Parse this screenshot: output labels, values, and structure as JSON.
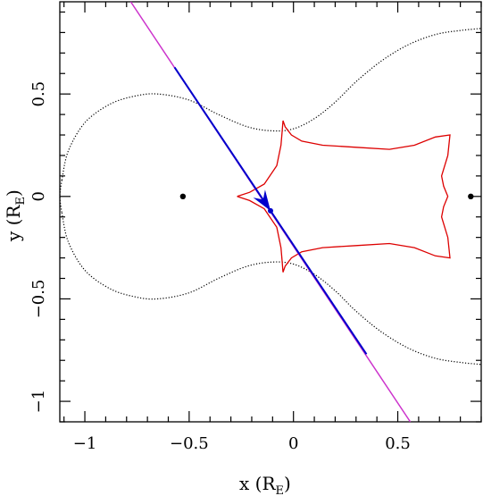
{
  "chart_data": {
    "type": "line",
    "title": "",
    "xlabel": {
      "main": "x (R",
      "sub": "E",
      "close": ")"
    },
    "ylabel": {
      "main": "y (R",
      "sub": "E",
      "close": ")"
    },
    "xlim": [
      -1.12,
      0.9
    ],
    "ylim": [
      -1.1,
      0.95
    ],
    "x_ticks": [
      -1,
      -0.5,
      0,
      0.5
    ],
    "x_tick_labels": [
      "−1",
      "−0.5",
      "0",
      "0.5"
    ],
    "y_ticks": [
      -1,
      -0.5,
      0,
      0.5
    ],
    "y_tick_labels": [
      "−1",
      "−0.5",
      "0",
      "0.5"
    ],
    "grid": false,
    "lenses": [
      {
        "x": -0.53,
        "y": 0.0
      },
      {
        "x": 0.85,
        "y": 0.0
      }
    ],
    "critical_curve": {
      "color": "#000000",
      "style": "dotted",
      "upper": [
        [
          -1.11,
          0.08
        ],
        [
          -1.08,
          0.22
        ],
        [
          -1.0,
          0.36
        ],
        [
          -0.88,
          0.45
        ],
        [
          -0.76,
          0.49
        ],
        [
          -0.65,
          0.5
        ],
        [
          -0.5,
          0.47
        ],
        [
          -0.36,
          0.4
        ],
        [
          -0.22,
          0.34
        ],
        [
          -0.1,
          0.32
        ],
        [
          0.0,
          0.33
        ],
        [
          0.1,
          0.38
        ],
        [
          0.2,
          0.46
        ],
        [
          0.3,
          0.56
        ],
        [
          0.42,
          0.66
        ],
        [
          0.55,
          0.74
        ],
        [
          0.68,
          0.79
        ],
        [
          0.8,
          0.81
        ],
        [
          0.9,
          0.82
        ]
      ]
    },
    "caustic": {
      "color": "#dd0000",
      "points": [
        [
          -0.27,
          0.0
        ],
        [
          -0.21,
          0.02
        ],
        [
          -0.14,
          0.06
        ],
        [
          -0.08,
          0.15
        ],
        [
          -0.06,
          0.25
        ],
        [
          -0.055,
          0.31
        ],
        [
          -0.05,
          0.37
        ],
        [
          -0.04,
          0.34
        ],
        [
          -0.01,
          0.3
        ],
        [
          0.04,
          0.27
        ],
        [
          0.14,
          0.25
        ],
        [
          0.3,
          0.24
        ],
        [
          0.46,
          0.23
        ],
        [
          0.58,
          0.25
        ],
        [
          0.68,
          0.29
        ],
        [
          0.75,
          0.3
        ],
        [
          0.74,
          0.2
        ],
        [
          0.71,
          0.1
        ],
        [
          0.72,
          0.05
        ],
        [
          0.74,
          0.0
        ],
        [
          0.72,
          -0.05
        ],
        [
          0.71,
          -0.1
        ],
        [
          0.74,
          -0.2
        ],
        [
          0.75,
          -0.3
        ],
        [
          0.68,
          -0.29
        ],
        [
          0.58,
          -0.25
        ],
        [
          0.46,
          -0.23
        ],
        [
          0.3,
          -0.24
        ],
        [
          0.14,
          -0.25
        ],
        [
          0.04,
          -0.27
        ],
        [
          -0.01,
          -0.3
        ],
        [
          -0.04,
          -0.34
        ],
        [
          -0.05,
          -0.37
        ],
        [
          -0.055,
          -0.31
        ],
        [
          -0.06,
          -0.25
        ],
        [
          -0.08,
          -0.15
        ],
        [
          -0.14,
          -0.06
        ],
        [
          -0.21,
          -0.02
        ],
        [
          -0.27,
          0.0
        ]
      ]
    },
    "trajectory": {
      "line_color": "#cc33cc",
      "highlight_color": "#0000cc",
      "start": [
        -0.78,
        0.95
      ],
      "end": [
        0.56,
        -1.1
      ],
      "highlight_start": [
        -0.57,
        0.63
      ],
      "highlight_end": [
        0.35,
        -0.77
      ],
      "source_position": [
        -0.11,
        -0.07
      ],
      "arrow_tip": [
        -0.11,
        -0.07
      ],
      "arrow_length": 0.1
    }
  }
}
